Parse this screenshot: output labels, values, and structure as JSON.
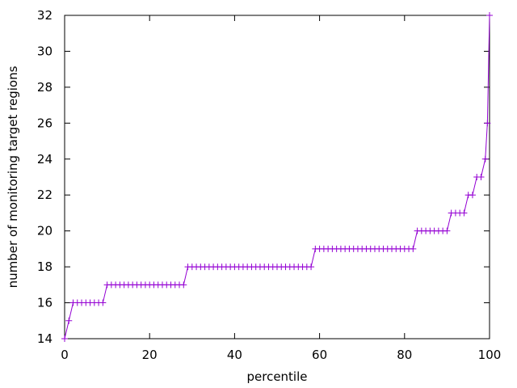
{
  "chart_data": {
    "type": "line",
    "title": "",
    "xlabel": "percentile",
    "ylabel": "number of monitoring target regions",
    "xlim": [
      0,
      100
    ],
    "ylim": [
      14,
      32
    ],
    "x_ticks": [
      0,
      20,
      40,
      60,
      80,
      100
    ],
    "y_ticks": [
      14,
      16,
      18,
      20,
      22,
      24,
      26,
      28,
      30,
      32
    ],
    "grid": false,
    "legend": "none",
    "marker": "plus",
    "colors": {
      "series": "#9400d3",
      "axes": "#000000",
      "background": "#ffffff"
    },
    "series": [
      {
        "x": [
          0,
          1,
          2,
          3,
          4,
          5,
          6,
          7,
          8,
          9,
          10,
          11,
          12,
          13,
          14,
          15,
          16,
          17,
          18,
          19,
          20,
          21,
          22,
          23,
          24,
          25,
          26,
          27,
          28,
          29,
          30,
          31,
          32,
          33,
          34,
          35,
          36,
          37,
          38,
          39,
          40,
          41,
          42,
          43,
          44,
          45,
          46,
          47,
          48,
          49,
          50,
          51,
          52,
          53,
          54,
          55,
          56,
          57,
          58,
          59,
          60,
          61,
          62,
          63,
          64,
          65,
          66,
          67,
          68,
          69,
          70,
          71,
          72,
          73,
          74,
          75,
          76,
          77,
          78,
          79,
          80,
          81,
          82,
          83,
          84,
          85,
          86,
          87,
          88,
          89,
          90,
          91,
          92,
          93,
          94,
          95,
          96,
          97,
          98,
          99,
          99.5,
          100
        ],
        "values": [
          14,
          15,
          16,
          16,
          16,
          16,
          16,
          16,
          16,
          16,
          17,
          17,
          17,
          17,
          17,
          17,
          17,
          17,
          17,
          17,
          17,
          17,
          17,
          17,
          17,
          17,
          17,
          17,
          17,
          18,
          18,
          18,
          18,
          18,
          18,
          18,
          18,
          18,
          18,
          18,
          18,
          18,
          18,
          18,
          18,
          18,
          18,
          18,
          18,
          18,
          18,
          18,
          18,
          18,
          18,
          18,
          18,
          18,
          18,
          19,
          19,
          19,
          19,
          19,
          19,
          19,
          19,
          19,
          19,
          19,
          19,
          19,
          19,
          19,
          19,
          19,
          19,
          19,
          19,
          19,
          19,
          19,
          19,
          20,
          20,
          20,
          20,
          20,
          20,
          20,
          20,
          21,
          21,
          21,
          21,
          22,
          22,
          23,
          23,
          24,
          26,
          32
        ]
      }
    ]
  }
}
